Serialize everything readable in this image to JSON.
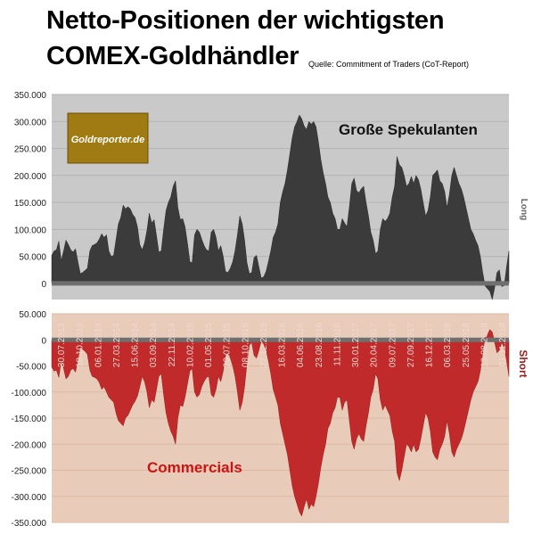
{
  "title_line1": "Netto-Positionen der wichtigsten",
  "title_line2": "COMEX-Goldhändler",
  "source": "Quelle: Commitment of Traders (CoT-Report)",
  "logo_text": "Goldreporter.de",
  "colors": {
    "top_bg": "#c9c9c9",
    "top_area": "#3b3b3b",
    "bottom_bg": "#e8ccb9",
    "bottom_area": "#c02a2a",
    "zero_line": "#6f6f6f",
    "logo_bg": "#a07a12"
  },
  "chart_data": [
    {
      "type": "area",
      "series": [
        {
          "name": "Große Spekulanten",
          "values": [
            52000,
            60000,
            62000,
            78000,
            42000,
            60000,
            80000,
            72000,
            62000,
            58000,
            64000,
            40000,
            18000,
            20000,
            24000,
            28000,
            60000,
            70000,
            72000,
            75000,
            82000,
            92000,
            85000,
            90000,
            60000,
            50000,
            52000,
            80000,
            110000,
            122000,
            145000,
            138000,
            142000,
            138000,
            128000,
            122000,
            105000,
            72000,
            62000,
            75000,
            98000,
            130000,
            112000,
            118000,
            88000,
            58000,
            60000,
            100000,
            135000,
            150000,
            160000,
            180000,
            190000,
            140000,
            118000,
            120000,
            105000,
            75000,
            40000,
            38000,
            90000,
            100000,
            95000,
            82000,
            70000,
            62000,
            60000,
            95000,
            100000,
            85000,
            60000,
            70000,
            50000,
            22000,
            20000,
            28000,
            40000,
            60000,
            90000,
            125000,
            110000,
            80000,
            38000,
            18000,
            20000,
            48000,
            52000,
            30000,
            10000,
            12000,
            22000,
            40000,
            60000,
            85000,
            95000,
            110000,
            150000,
            170000,
            185000,
            210000,
            240000,
            270000,
            290000,
            300000,
            312000,
            305000,
            292000,
            285000,
            300000,
            295000,
            300000,
            290000,
            262000,
            230000,
            205000,
            185000,
            160000,
            150000,
            130000,
            120000,
            100000,
            100000,
            120000,
            112000,
            105000,
            142000,
            185000,
            195000,
            172000,
            168000,
            175000,
            180000,
            150000,
            125000,
            95000,
            80000,
            55000,
            60000,
            100000,
            120000,
            115000,
            120000,
            130000,
            160000,
            180000,
            235000,
            220000,
            215000,
            200000,
            180000,
            185000,
            198000,
            185000,
            200000,
            192000,
            175000,
            150000,
            125000,
            135000,
            160000,
            200000,
            205000,
            210000,
            190000,
            185000,
            170000,
            140000,
            165000,
            200000,
            215000,
            200000,
            185000,
            175000,
            160000,
            140000,
            120000,
            100000,
            92000,
            80000,
            70000,
            50000,
            20000,
            -5000,
            -10000,
            -15000,
            -30000,
            -8000,
            20000,
            25000,
            -6000,
            -4000,
            30000,
            60000
          ]
        }
      ],
      "ylim": [
        -30000,
        350000
      ],
      "yticks": [
        "350.000",
        "300.000",
        "250.000",
        "200.000",
        "150.000",
        "100.000",
        "50.000",
        "0"
      ],
      "legend_label": "Große Spekulanten",
      "side_label": "Long"
    },
    {
      "type": "area",
      "series": [
        {
          "name": "Commercials",
          "values": [
            -52000,
            -60000,
            -58000,
            -72000,
            -40000,
            -55000,
            -75000,
            -70000,
            -58000,
            -55000,
            -62000,
            -38000,
            -14000,
            -18000,
            -22000,
            -28000,
            -58000,
            -70000,
            -72000,
            -75000,
            -82000,
            -95000,
            -90000,
            -100000,
            -110000,
            -115000,
            -120000,
            -140000,
            -155000,
            -160000,
            -165000,
            -150000,
            -145000,
            -135000,
            -125000,
            -118000,
            -108000,
            -90000,
            -70000,
            -80000,
            -100000,
            -130000,
            -115000,
            -120000,
            -95000,
            -70000,
            -65000,
            -105000,
            -140000,
            -160000,
            -175000,
            -185000,
            -200000,
            -150000,
            -125000,
            -128000,
            -110000,
            -85000,
            -60000,
            -55000,
            -100000,
            -110000,
            -105000,
            -90000,
            -80000,
            -72000,
            -70000,
            -105000,
            -110000,
            -95000,
            -70000,
            -80000,
            -60000,
            -30000,
            -25000,
            -35000,
            -50000,
            -70000,
            -100000,
            -135000,
            -120000,
            -90000,
            -45000,
            -10000,
            -5000,
            -30000,
            -35000,
            -20000,
            -2000,
            -8000,
            -20000,
            -40000,
            -65000,
            -95000,
            -110000,
            -125000,
            -160000,
            -180000,
            -200000,
            -220000,
            -250000,
            -280000,
            -300000,
            -315000,
            -330000,
            -338000,
            -320000,
            -305000,
            -325000,
            -315000,
            -320000,
            -300000,
            -275000,
            -245000,
            -220000,
            -200000,
            -170000,
            -160000,
            -140000,
            -130000,
            -110000,
            -110000,
            -135000,
            -120000,
            -115000,
            -155000,
            -195000,
            -210000,
            -190000,
            -180000,
            -190000,
            -195000,
            -165000,
            -140000,
            -110000,
            -95000,
            -65000,
            -75000,
            -115000,
            -135000,
            -125000,
            -135000,
            -145000,
            -175000,
            -195000,
            -255000,
            -270000,
            -250000,
            -225000,
            -200000,
            -205000,
            -215000,
            -200000,
            -215000,
            -210000,
            -190000,
            -165000,
            -140000,
            -150000,
            -175000,
            -215000,
            -225000,
            -230000,
            -210000,
            -200000,
            -185000,
            -155000,
            -180000,
            -215000,
            -225000,
            -210000,
            -200000,
            -190000,
            -175000,
            -155000,
            -135000,
            -115000,
            -100000,
            -90000,
            -80000,
            -60000,
            -25000,
            5000,
            10000,
            20000,
            15000,
            -5000,
            -25000,
            -20000,
            -5000,
            -15000,
            -40000,
            -70000
          ]
        }
      ],
      "ylim": [
        -350000,
        50000
      ],
      "yticks": [
        "50.000",
        "0",
        "-50.000",
        "-100.000",
        "-150.000",
        "-200.000",
        "-250.000",
        "-300.000",
        "-350.000"
      ],
      "legend_label": "Commercials",
      "side_label": "Short",
      "x_labels": [
        "30.07.2013",
        "18.10.2013",
        "06.01.2014",
        "27.03.2014",
        "15.06.2014",
        "03.09.2014",
        "22.11.2014",
        "10.02.2015",
        "01.05.2015",
        "20.07.2015",
        "08.10.2015",
        "27.12.2015",
        "16.03.2016",
        "04.06.2016",
        "23.08.2016",
        "11.11.2016",
        "30.01.2017",
        "20.04.2017",
        "09.07.2017",
        "27.09.2017",
        "16.12.2017",
        "06.03.2018",
        "25.05.2018",
        "13.08.2018",
        "01.11.2018"
      ]
    }
  ]
}
